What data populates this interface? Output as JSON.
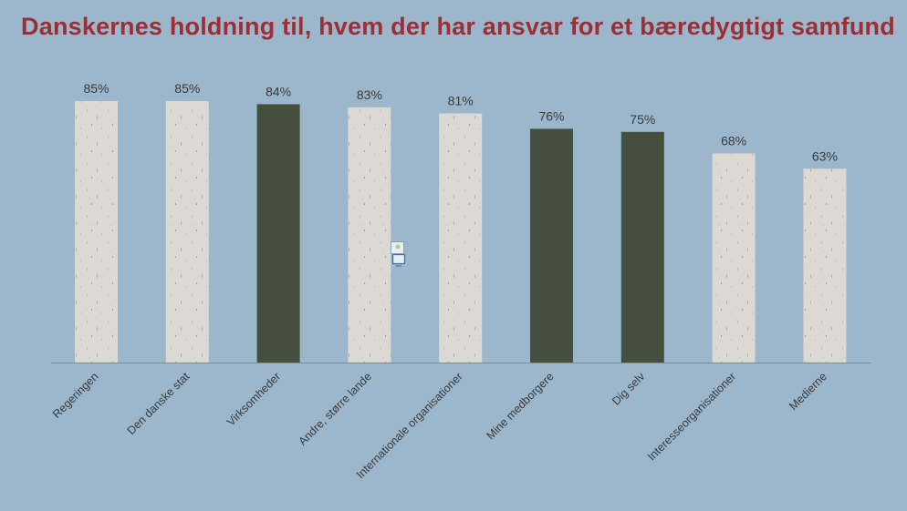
{
  "chart_data": {
    "type": "bar",
    "title": "Danskernes holdning til, hvem der har ansvar for et bæredygtigt samfund",
    "categories": [
      "Regeringen",
      "Den danske stat",
      "Virksomheder",
      "Andre, større lande",
      "Internationale organisationer",
      "Mine medborgere",
      "Dig selv",
      "Interesseorganisationer",
      "Medierne"
    ],
    "values": [
      85,
      85,
      84,
      83,
      81,
      76,
      75,
      68,
      63
    ],
    "value_labels": [
      "85%",
      "85%",
      "84%",
      "83%",
      "81%",
      "76%",
      "75%",
      "68%",
      "63%"
    ],
    "highlighted": [
      false,
      false,
      true,
      false,
      false,
      true,
      true,
      false,
      false
    ],
    "ylim": [
      0,
      100
    ],
    "xlabel": "",
    "ylabel": "",
    "grid": false,
    "legend": "none",
    "colors": {
      "background": "#9cb6cb",
      "bar_light": "#d9d5cf",
      "bar_dark": "#454f3d",
      "title": "#9b2f35",
      "axis": "#7f8a94"
    }
  },
  "icons": {
    "placeholder": "image-placeholder-icon"
  }
}
